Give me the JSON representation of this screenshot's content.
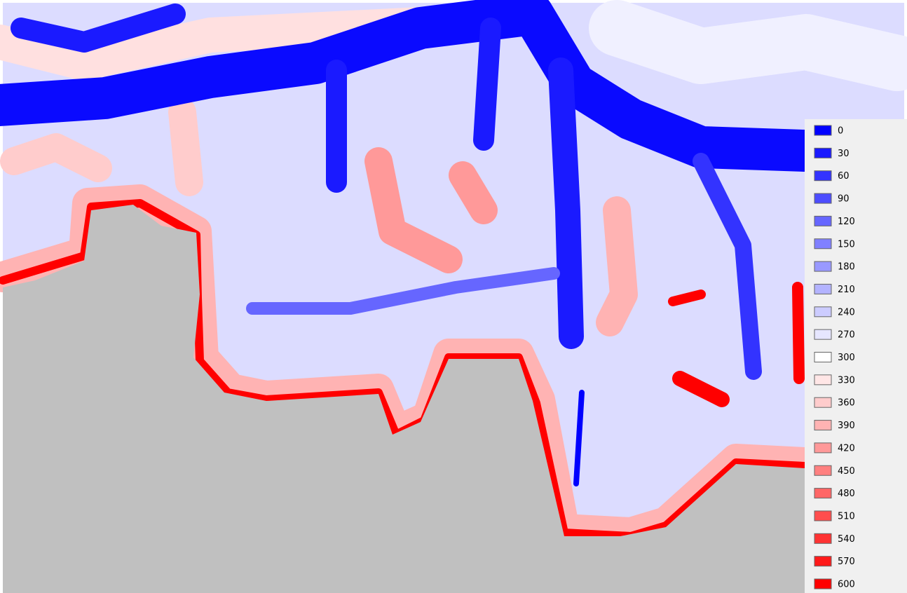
{
  "legend": [
    {
      "label": "0",
      "color": "#0000ff"
    },
    {
      "label": "30",
      "color": "#1a1aff"
    },
    {
      "label": "60",
      "color": "#3333ff"
    },
    {
      "label": "90",
      "color": "#4d4dff"
    },
    {
      "label": "120",
      "color": "#6666ff"
    },
    {
      "label": "150",
      "color": "#8080ff"
    },
    {
      "label": "180",
      "color": "#9999ff"
    },
    {
      "label": "210",
      "color": "#b3b3ff"
    },
    {
      "label": "240",
      "color": "#ccccff"
    },
    {
      "label": "270",
      "color": "#e6e6ff"
    },
    {
      "label": "300",
      "color": "#ffffff"
    },
    {
      "label": "330",
      "color": "#ffe6e6"
    },
    {
      "label": "360",
      "color": "#ffcccc"
    },
    {
      "label": "390",
      "color": "#ffb3b3"
    },
    {
      "label": "420",
      "color": "#ff9999"
    },
    {
      "label": "450",
      "color": "#ff8080"
    },
    {
      "label": "480",
      "color": "#ff6666"
    },
    {
      "label": "510",
      "color": "#ff4d4d"
    },
    {
      "label": "540",
      "color": "#ff3333"
    },
    {
      "label": "570",
      "color": "#ff1a1a"
    },
    {
      "label": "600",
      "color": "#ff0000"
    }
  ]
}
